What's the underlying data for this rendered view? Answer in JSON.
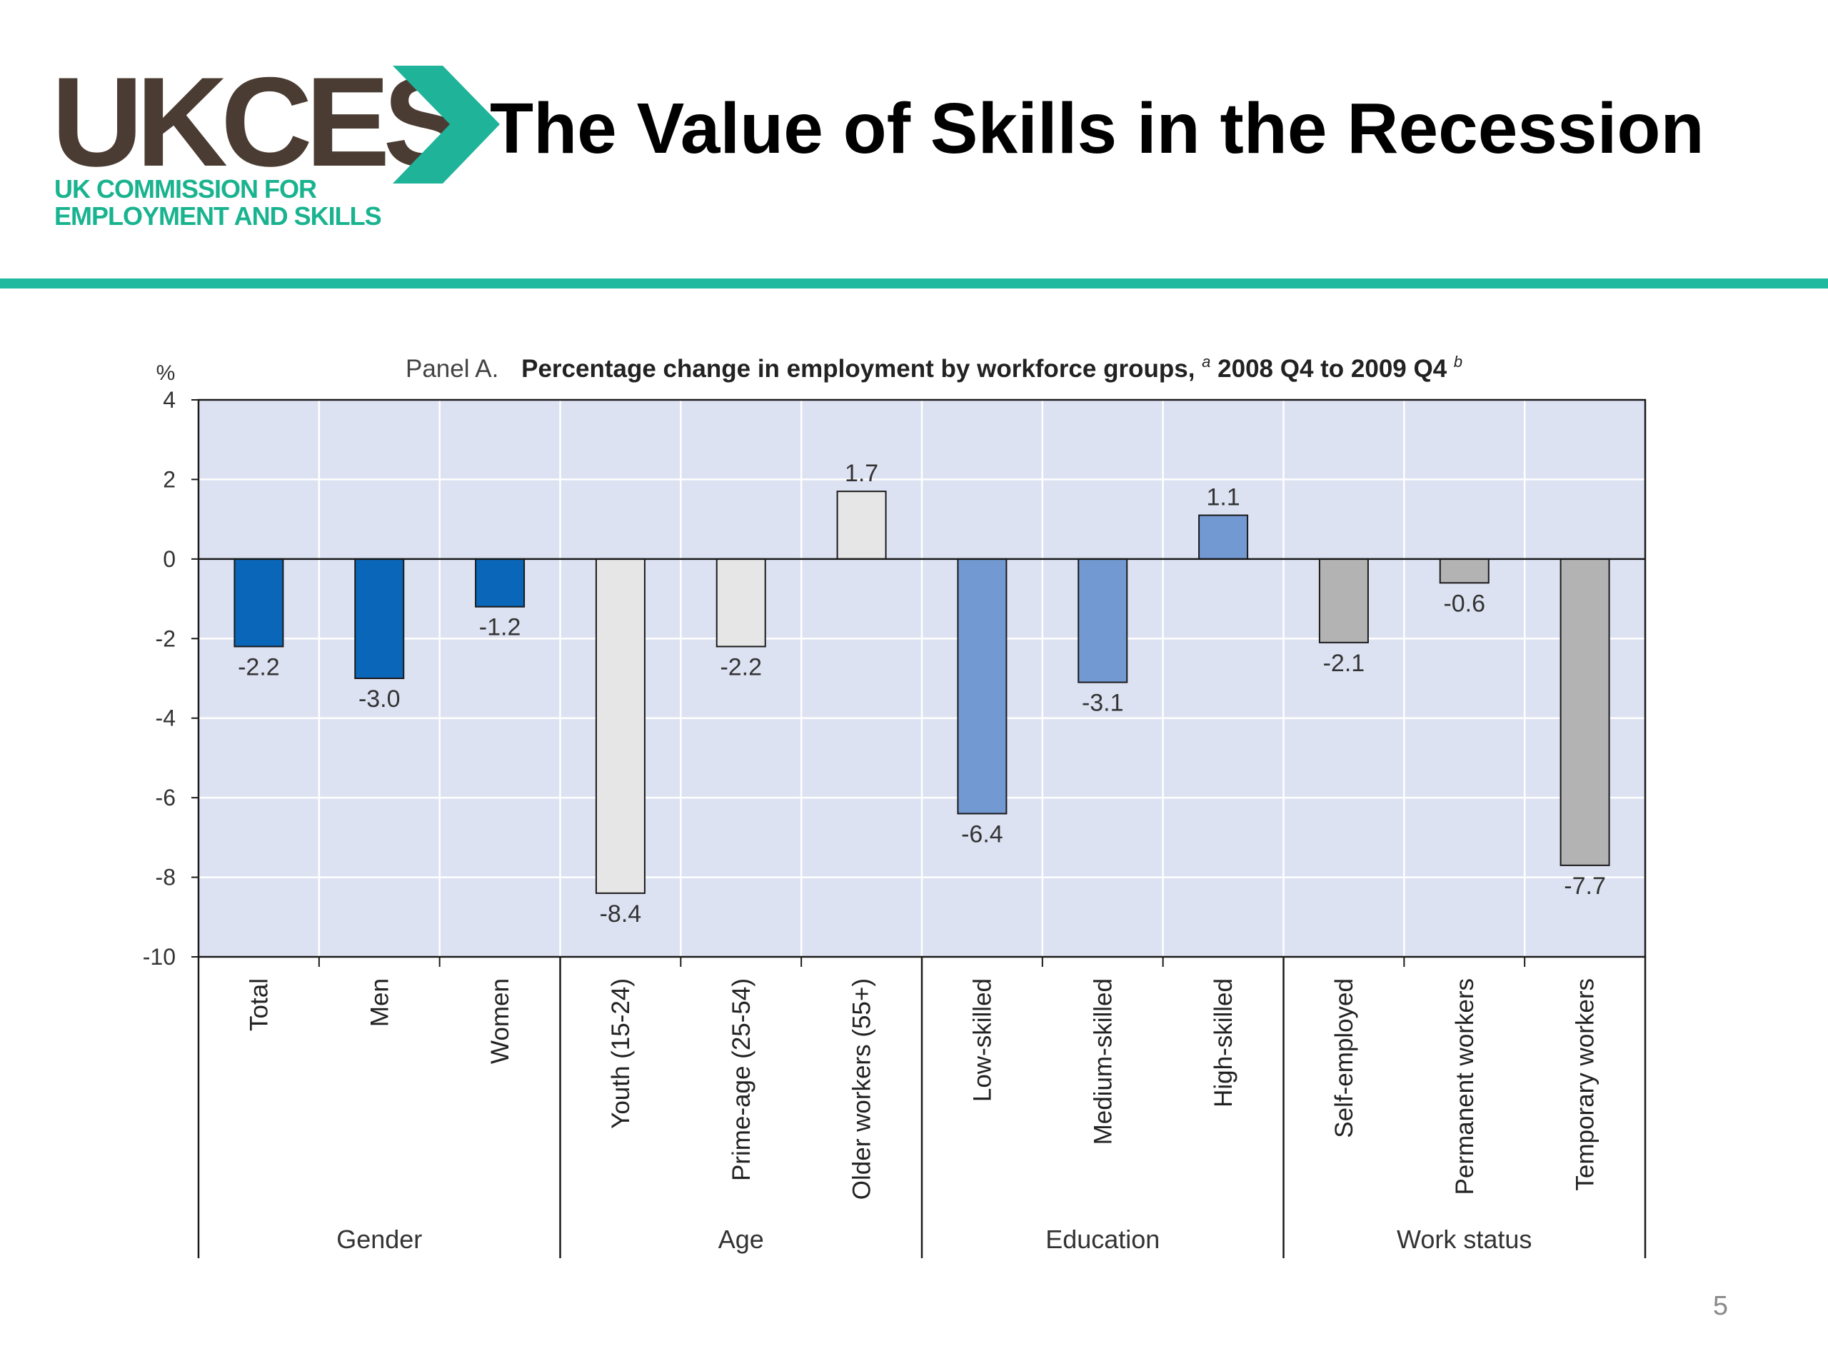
{
  "header": {
    "logo_text": "UKCES",
    "logo_line1": "UK COMMISSION FOR",
    "logo_line2": "EMPLOYMENT AND SKILLS",
    "title": "The Value of Skills in the Recession",
    "accent_color": "#1fb9a0"
  },
  "footer": {
    "page_number": "5"
  },
  "chart_data": {
    "type": "bar",
    "title_prefix": "Panel A.",
    "title": "Percentage change in employment by workforce groups,",
    "title_note_a": "a",
    "title_period": " 2008 Q4 to 2009 Q4",
    "title_note_b": "b",
    "ylabel": "%",
    "ylim": [
      -10,
      4
    ],
    "yticks": [
      "4",
      "2",
      "0",
      "-2",
      "-4",
      "-6",
      "-8",
      "-10"
    ],
    "grid": true,
    "categories": [
      "Total",
      "Men",
      "Women",
      "Youth (15-24)",
      "Prime-age (25-54)",
      "Older workers (55+)",
      "Low-skilled",
      "Medium-skilled",
      "High-skilled",
      "Self-employed",
      "Permanent workers",
      "Temporary workers"
    ],
    "values": [
      -2.2,
      -3.0,
      -1.2,
      -8.4,
      -2.2,
      1.7,
      -6.4,
      -3.1,
      1.1,
      -2.1,
      -0.6,
      -7.7
    ],
    "value_labels": [
      "-2.2",
      "-3.0",
      "-1.2",
      "-8.4",
      "-2.2",
      "1.7",
      "-6.4",
      "-3.1",
      "1.1",
      "-2.1",
      "-0.6",
      "-7.7"
    ],
    "groups": [
      {
        "name": "Gender",
        "count": 3,
        "color": "#0a66b8"
      },
      {
        "name": "Age",
        "count": 3,
        "color": "#e6e6e6"
      },
      {
        "name": "Education",
        "count": 3,
        "color": "#7399d2"
      },
      {
        "name": "Work status",
        "count": 3,
        "color": "#b3b3b3"
      }
    ],
    "plot_background": "#dde2f3"
  }
}
